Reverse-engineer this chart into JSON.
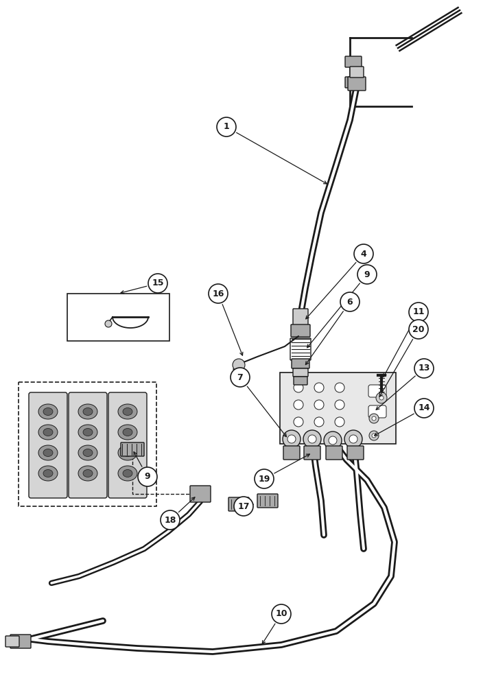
{
  "background_color": "#ffffff",
  "figsize": [
    7.2,
    10.0
  ],
  "dpi": 100,
  "color_main": "#1a1a1a",
  "color_gray": "#888888",
  "color_lightgray": "#cccccc",
  "color_medgray": "#aaaaaa"
}
